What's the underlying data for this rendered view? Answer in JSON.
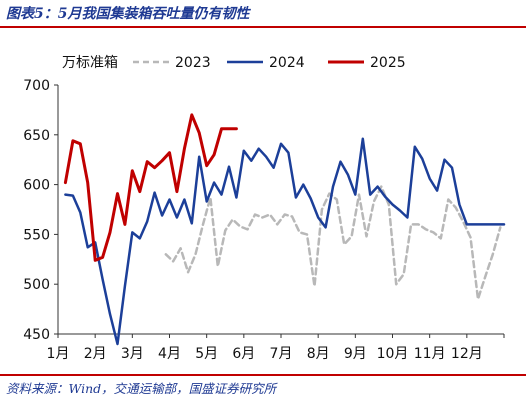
{
  "figure": {
    "title": "图表5：5月我国集装箱吞吐量仍有韧性",
    "source": "资料来源：Wind，交通运输部，国盛证券研究所"
  },
  "chart_data": {
    "type": "line",
    "title": "",
    "unit_label": "万标准箱",
    "xlabel": "",
    "ylabel": "",
    "ylim": [
      450,
      700
    ],
    "yticks": [
      450,
      500,
      550,
      600,
      650,
      700
    ],
    "xlim": [
      1,
      13
    ],
    "x_tick_labels": [
      "1月",
      "2月",
      "3月",
      "4月",
      "5月",
      "6月",
      "7月",
      "8月",
      "9月",
      "10月",
      "11月",
      "12月"
    ],
    "x_tick_positions": [
      1,
      2,
      3,
      4,
      5,
      6,
      7,
      8,
      9,
      10,
      11,
      12
    ],
    "legend_position": "top",
    "grid": false,
    "series": [
      {
        "name": "2023",
        "color": "#b8b8b8",
        "dash": "6,4",
        "width": 2.5,
        "x": [
          3.9,
          4.1,
          4.3,
          4.5,
          4.7,
          4.9,
          5.1,
          5.3,
          5.5,
          5.7,
          5.9,
          6.1,
          6.3,
          6.5,
          6.7,
          6.9,
          7.1,
          7.3,
          7.5,
          7.7,
          7.9,
          8.1,
          8.3,
          8.5,
          8.7,
          8.9,
          9.1,
          9.3,
          9.5,
          9.7,
          9.9,
          10.1,
          10.3,
          10.5,
          10.7,
          10.9,
          11.1,
          11.3,
          11.5,
          11.7,
          11.9,
          12.1,
          12.3,
          12.5,
          12.7,
          12.9
        ],
        "values": [
          530,
          523,
          536,
          512,
          530,
          560,
          587,
          518,
          554,
          565,
          558,
          555,
          570,
          567,
          570,
          560,
          570,
          568,
          552,
          550,
          498,
          575,
          591,
          585,
          540,
          548,
          590,
          548,
          583,
          598,
          580,
          500,
          510,
          560,
          560,
          555,
          552,
          546,
          585,
          577,
          563,
          547,
          485,
          508,
          530,
          557
        ]
      },
      {
        "name": "2024",
        "color": "#1c3f99",
        "dash": "",
        "width": 2.5,
        "x": [
          1.2,
          1.4,
          1.6,
          1.8,
          2.0,
          2.2,
          2.4,
          2.6,
          2.8,
          3.0,
          3.2,
          3.4,
          3.6,
          3.8,
          4.0,
          4.2,
          4.4,
          4.6,
          4.8,
          5.0,
          5.2,
          5.4,
          5.6,
          5.8,
          6.0,
          6.2,
          6.4,
          6.6,
          6.8,
          7.0,
          7.2,
          7.4,
          7.6,
          7.8,
          8.0,
          8.2,
          8.4,
          8.6,
          8.8,
          9.0,
          9.2,
          9.4,
          9.6,
          9.8,
          10.0,
          10.2,
          10.4,
          10.6,
          10.8,
          11.0,
          11.2,
          11.4,
          11.6,
          11.8,
          12.0,
          12.2,
          12.4,
          12.6,
          12.8,
          13.0
        ],
        "values": [
          590,
          589,
          572,
          537,
          542,
          505,
          470,
          440,
          498,
          552,
          546,
          563,
          592,
          569,
          585,
          567,
          585,
          561,
          628,
          583,
          602,
          590,
          618,
          587,
          634,
          624,
          636,
          628,
          617,
          641,
          632,
          587,
          600,
          586,
          567,
          557,
          598,
          623,
          610,
          590,
          646,
          590,
          598,
          588,
          580,
          574,
          567,
          638,
          626,
          606,
          594,
          625,
          617,
          580,
          560,
          560,
          560,
          560,
          560,
          560
        ]
      },
      {
        "name": "2025",
        "color": "#c00000",
        "dash": "",
        "width": 3,
        "x": [
          1.2,
          1.4,
          1.6,
          1.8,
          2.0,
          2.2,
          2.4,
          2.6,
          2.8,
          3.0,
          3.2,
          3.4,
          3.6,
          3.8,
          4.0,
          4.2,
          4.4,
          4.6,
          4.8,
          5.0,
          5.2,
          5.4,
          5.6,
          5.8
        ],
        "values": [
          602,
          644,
          641,
          602,
          524,
          527,
          552,
          591,
          560,
          614,
          593,
          623,
          617,
          624,
          632,
          593,
          636,
          670,
          652,
          619,
          630,
          656,
          656,
          656
        ]
      }
    ]
  }
}
